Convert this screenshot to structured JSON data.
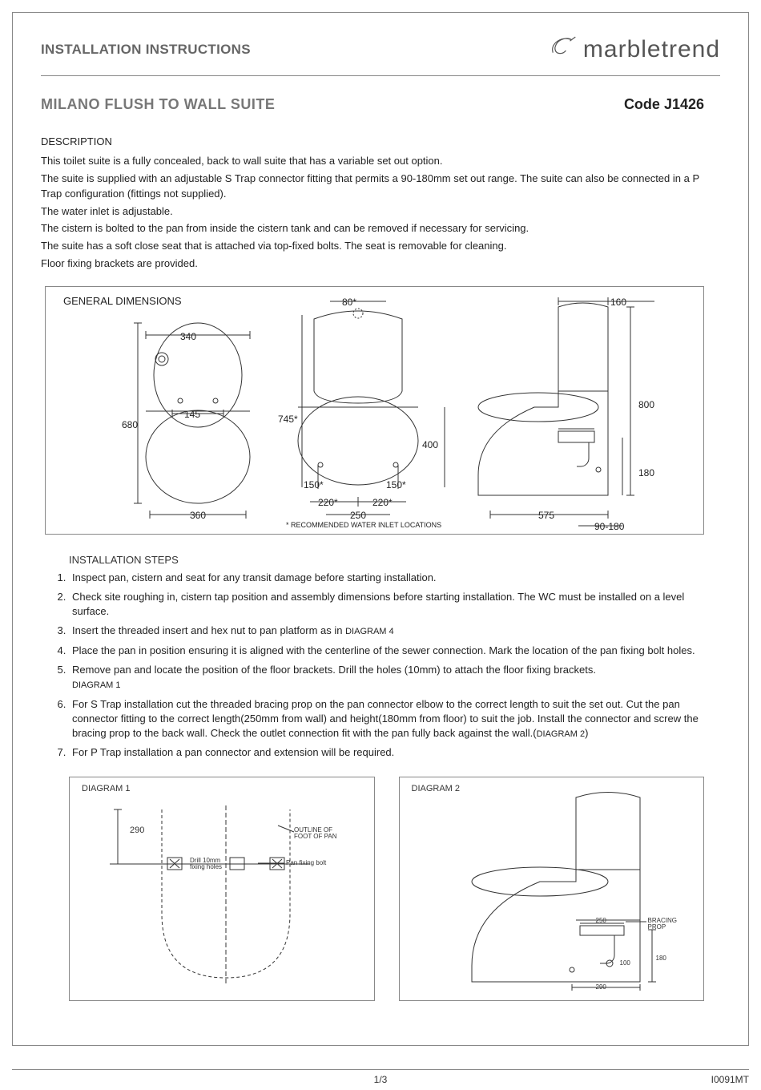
{
  "header": {
    "title": "INSTALLATION INSTRUCTIONS",
    "brand": "marbletrend"
  },
  "product": {
    "name": "MILANO FLUSH TO WALL  SUITE",
    "code": "Code J1426"
  },
  "description": {
    "label": "DESCRIPTION",
    "p1": "This toilet suite is a fully concealed, back to wall suite that has a variable set out option.",
    "p2": "The suite is supplied with an adjustable S Trap connector fitting that permits a 90-180mm set out range.  The suite can also be connected in a P Trap configuration (fittings not supplied).",
    "p3": "The water inlet is adjustable.",
    "p4": "The cistern is bolted to the pan from inside the cistern tank and can be removed if necessary for servicing.",
    "p5": "The suite has a soft close seat that is attached via top-fixed bolts.  The seat is removable for cleaning.",
    "p6": "Floor fixing brackets are provided."
  },
  "general_dimensions": {
    "title": "GENERAL DIMENSIONS",
    "footnote": "* RECOMMENDED WATER INLET LOCATIONS",
    "labels": {
      "d80": "80*",
      "d160": "160",
      "d340": "340",
      "d145": "145",
      "d680": "680",
      "d745": "745*",
      "d400": "400",
      "d800": "800",
      "d180": "180",
      "d150a": "150*",
      "d150b": "150*",
      "d220a": "220*",
      "d220b": "220*",
      "d250": "250",
      "d360": "360",
      "d575": "575",
      "d90_180": "90-180"
    },
    "colors": {
      "line": "#333333",
      "bg": "#ffffff"
    }
  },
  "installation": {
    "title": "INSTALLATION STEPS",
    "s1": "Inspect pan, cistern and seat for any transit damage before starting installation.",
    "s2": "Check site roughing in, cistern tap position and assembly dimensions before starting installation.  The WC must be installed on a level surface.",
    "s3_a": "Insert the threaded insert and hex nut to pan platform as in ",
    "s3_b": "DIAGRAM 4",
    "s4": "Place the pan in position ensuring it is aligned with the centerline of the sewer connection.   Mark the location of the pan fixing bolt holes.",
    "s5_a": "Remove pan and locate the position of the floor brackets.  Drill the holes (10mm) to attach the floor fixing brackets. ",
    "s5_b": "DIAGRAM 1",
    "s6_a": "For S Trap installation cut the threaded bracing prop on the pan connector elbow to the correct length to suit the set out.   Cut the pan connector fitting to the correct length(250mm from wall) and height(180mm from floor) to suit the job.  Install the connector and screw  the bracing prop to the back wall.  Check the outlet connection fit with the pan fully back against the wall.(",
    "s6_b": "DIAGRAM 2",
    "s6_c": ")",
    "s7": "For P Trap installation a pan connector and extension will be required."
  },
  "diagram1": {
    "title": "DIAGRAM 1",
    "d290": "290",
    "outline_label": "OUTLINE OF\nFOOT OF PAN",
    "drill_label": "Drill 10mm\nfixing holes",
    "pan_bolt_label": "Pan fixing bolt"
  },
  "diagram2": {
    "title": "DIAGRAM 2",
    "d250": "250",
    "bracing_label": "BRACING\nPROP",
    "d180": "180",
    "d100": "100",
    "d290": "290"
  },
  "footer": {
    "page": "1/3",
    "doc_code": "I0091MT"
  }
}
